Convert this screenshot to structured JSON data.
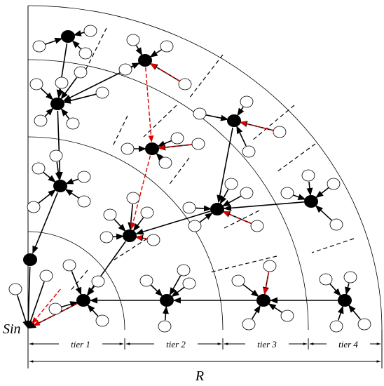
{
  "sink_label": "Sin",
  "tiers": [
    "tier 1",
    "tier 2",
    "tier 3",
    "tier 4"
  ],
  "range_label": "R"
}
